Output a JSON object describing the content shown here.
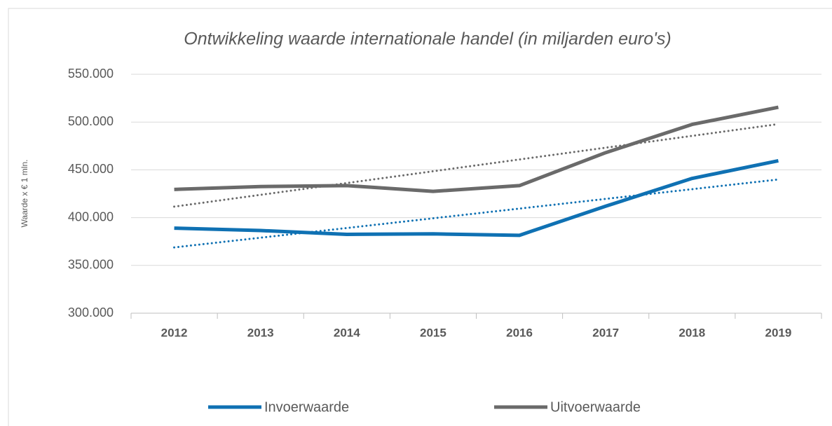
{
  "chart_data": {
    "type": "line",
    "title": "Ontwikkeling waarde internationale handel (in miljarden euro's)",
    "y_label": "Waarde x € 1 mln.",
    "categories": [
      "2012",
      "2013",
      "2014",
      "2015",
      "2016",
      "2017",
      "2018",
      "2019"
    ],
    "series": [
      {
        "name": "Invoerwaarde",
        "color": "#0f71b3",
        "values": [
          389000,
          386500,
          382500,
          383000,
          381500,
          412000,
          441000,
          459500
        ]
      },
      {
        "name": "Uitvoerwaarde",
        "color": "#6a6a6a",
        "values": [
          429500,
          432500,
          433500,
          427500,
          433500,
          468000,
          497500,
          515500
        ]
      }
    ],
    "ylim": [
      300000,
      550000
    ],
    "yticks": [
      {
        "value": 300000,
        "label": "300.000"
      },
      {
        "value": 350000,
        "label": "350.000"
      },
      {
        "value": 400000,
        "label": "400.000"
      },
      {
        "value": 450000,
        "label": "450.000"
      },
      {
        "value": 500000,
        "label": "500.000"
      },
      {
        "value": 550000,
        "label": "550.000"
      }
    ],
    "grid": true,
    "trendline": "linear",
    "legend": "bottom"
  }
}
